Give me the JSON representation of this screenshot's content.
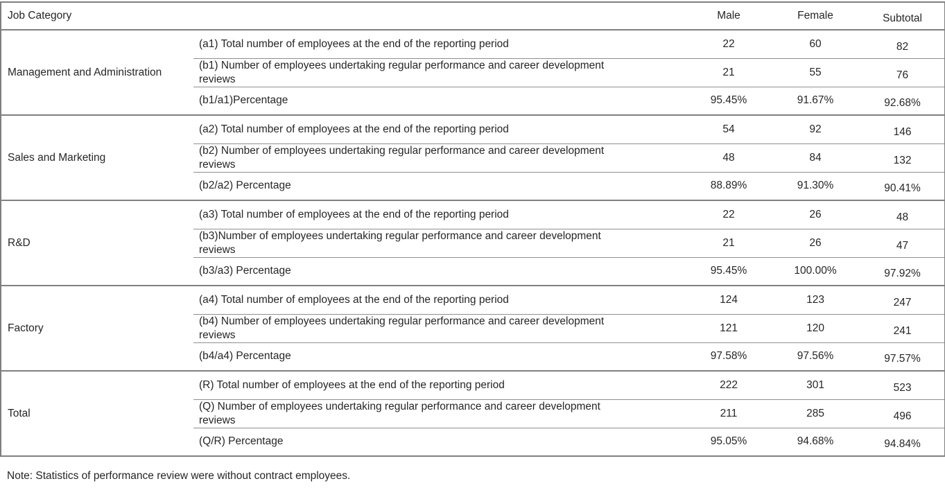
{
  "colors": {
    "background": "#ffffff",
    "text": "#262626",
    "border": "#7f7f7f",
    "inner_border": "#8e8e8e"
  },
  "table": {
    "header": {
      "job_category": "Job Category",
      "male": "Male",
      "female": "Female",
      "subtotal": "Subtotal"
    },
    "sections": [
      {
        "category": "Management and Administration",
        "rows": [
          {
            "label": "(a1) Total number of employees at the end of the reporting period",
            "male": "22",
            "female": "60",
            "subtotal": "82"
          },
          {
            "label": "(b1) Number of employees undertaking regular performance and career development reviews",
            "male": "21",
            "female": "55",
            "subtotal": "76"
          },
          {
            "label": "(b1/a1)Percentage",
            "male": "95.45%",
            "female": "91.67%",
            "subtotal": "92.68%"
          }
        ]
      },
      {
        "category": "Sales and Marketing",
        "rows": [
          {
            "label": "(a2) Total number of employees at the end of the reporting period",
            "male": "54",
            "female": "92",
            "subtotal": "146"
          },
          {
            "label": "(b2) Number of employees undertaking regular performance and career development reviews",
            "male": "48",
            "female": "84",
            "subtotal": "132"
          },
          {
            "label": "(b2/a2) Percentage",
            "male": "88.89%",
            "female": "91.30%",
            "subtotal": "90.41%"
          }
        ]
      },
      {
        "category": "R&D",
        "rows": [
          {
            "label": "(a3) Total number of employees at the end of the reporting period",
            "male": "22",
            "female": "26",
            "subtotal": "48"
          },
          {
            "label": "(b3)Number of employees undertaking regular performance and career development reviews",
            "male": "21",
            "female": "26",
            "subtotal": "47"
          },
          {
            "label": "(b3/a3) Percentage",
            "male": "95.45%",
            "female": "100.00%",
            "subtotal": "97.92%"
          }
        ]
      },
      {
        "category": "Factory",
        "rows": [
          {
            "label": "(a4) Total number of employees at the end of the reporting period",
            "male": "124",
            "female": "123",
            "subtotal": "247"
          },
          {
            "label": "(b4) Number of employees undertaking regular performance and career development reviews",
            "male": "121",
            "female": "120",
            "subtotal": "241"
          },
          {
            "label": "(b4/a4) Percentage",
            "male": "97.58%",
            "female": "97.56%",
            "subtotal": "97.57%"
          }
        ]
      },
      {
        "category": "Total",
        "rows": [
          {
            "label": "(R) Total number of employees at the end of the reporting period",
            "male": "222",
            "female": "301",
            "subtotal": "523"
          },
          {
            "label": "(Q) Number of employees undertaking regular performance and career development reviews",
            "male": "211",
            "female": "285",
            "subtotal": "496"
          },
          {
            "label": "(Q/R) Percentage",
            "male": "95.05%",
            "female": "94.68%",
            "subtotal": "94.84%"
          }
        ]
      }
    ],
    "note": "Note: Statistics of performance review were without contract employees."
  }
}
